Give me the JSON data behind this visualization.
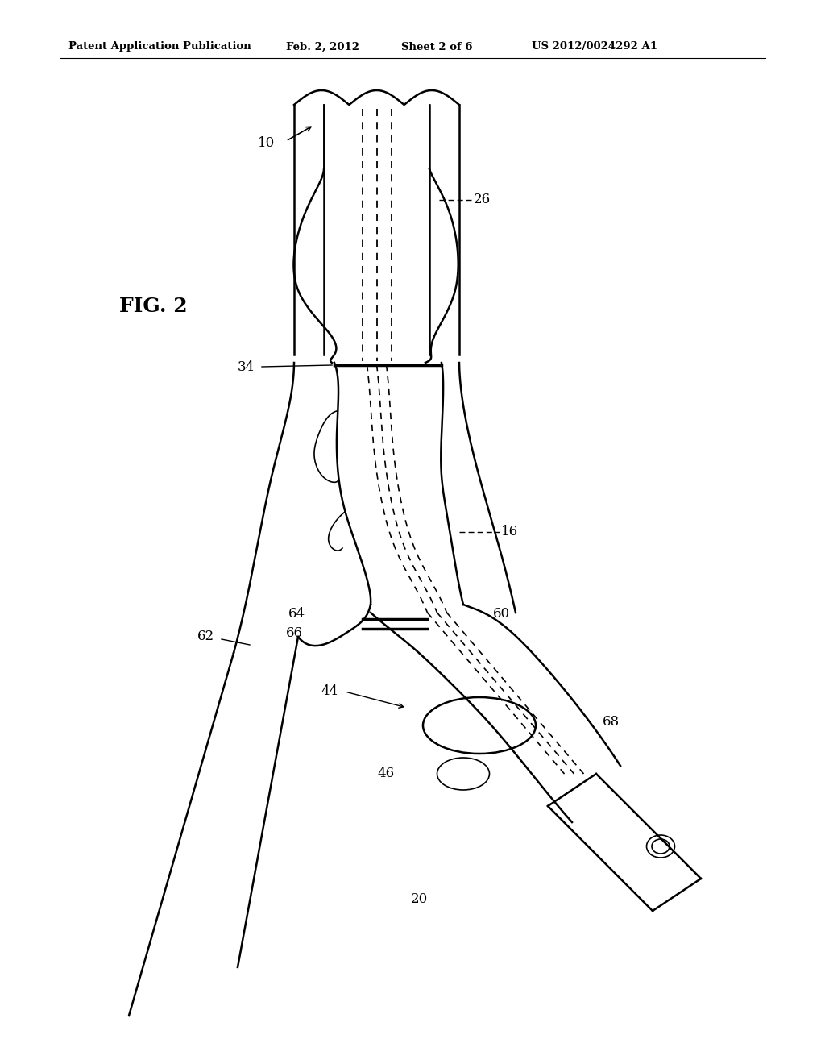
{
  "bg_color": "#ffffff",
  "line_color": "#000000",
  "header_text": "Patent Application Publication",
  "header_date": "Feb. 2, 2012",
  "header_sheet": "Sheet 2 of 6",
  "header_patent": "US 2012/0024292 A1",
  "fig_label": "FIG. 2",
  "lw_main": 1.8,
  "lw_thin": 1.2,
  "lw_thick": 2.5
}
